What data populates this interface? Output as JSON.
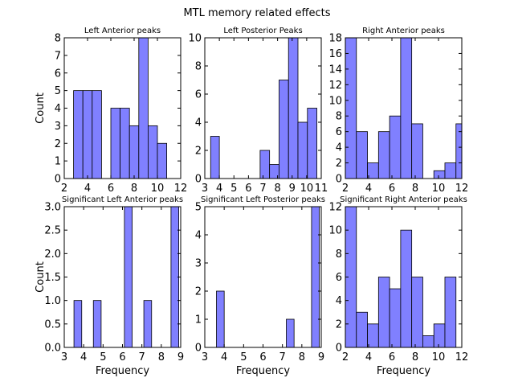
{
  "figure_title": "MTL memory related effects",
  "colors": {
    "bar_fill": "#8080ff",
    "bar_edge": "#000000",
    "axes": "#000000"
  },
  "chart_data": [
    {
      "type": "bar",
      "title": "Left Anterior peaks",
      "xlabel": "",
      "ylabel": "Count",
      "xlim": [
        2,
        12
      ],
      "ylim": [
        0,
        8
      ],
      "xticks": [
        2,
        4,
        6,
        8,
        10,
        12
      ],
      "yticks": [
        0,
        1,
        2,
        3,
        4,
        5,
        6,
        7,
        8
      ],
      "bins": [
        {
          "x0": 2.8,
          "x1": 3.6,
          "count": 5
        },
        {
          "x0": 3.6,
          "x1": 4.4,
          "count": 5
        },
        {
          "x0": 4.4,
          "x1": 5.2,
          "count": 5
        },
        {
          "x0": 6.0,
          "x1": 6.8,
          "count": 4
        },
        {
          "x0": 6.8,
          "x1": 7.6,
          "count": 4
        },
        {
          "x0": 7.6,
          "x1": 8.4,
          "count": 3
        },
        {
          "x0": 8.4,
          "x1": 9.2,
          "count": 8
        },
        {
          "x0": 9.2,
          "x1": 10.0,
          "count": 3
        },
        {
          "x0": 10.0,
          "x1": 10.8,
          "count": 2
        }
      ]
    },
    {
      "type": "bar",
      "title": "Left Posterior Peaks",
      "xlabel": "",
      "ylabel": "",
      "xlim": [
        3,
        11
      ],
      "ylim": [
        0,
        10
      ],
      "xticks": [
        3,
        4,
        5,
        6,
        7,
        8,
        9,
        10,
        11
      ],
      "yticks": [
        0,
        2,
        4,
        6,
        8,
        10
      ],
      "bins": [
        {
          "x0": 3.4,
          "x1": 4.0,
          "count": 3
        },
        {
          "x0": 6.8,
          "x1": 7.45,
          "count": 2
        },
        {
          "x0": 7.45,
          "x1": 8.1,
          "count": 1
        },
        {
          "x0": 8.1,
          "x1": 8.75,
          "count": 7
        },
        {
          "x0": 8.75,
          "x1": 9.4,
          "count": 10
        },
        {
          "x0": 9.4,
          "x1": 10.05,
          "count": 4
        },
        {
          "x0": 10.05,
          "x1": 10.7,
          "count": 5
        }
      ]
    },
    {
      "type": "bar",
      "title": "Right Anterior peaks",
      "xlabel": "",
      "ylabel": "",
      "xlim": [
        2,
        12
      ],
      "ylim": [
        0,
        18
      ],
      "xticks": [
        2,
        4,
        6,
        8,
        10,
        12
      ],
      "yticks": [
        0,
        2,
        4,
        6,
        8,
        10,
        12,
        14,
        16,
        18
      ],
      "bins": [
        {
          "x0": 2.0,
          "x1": 2.95,
          "count": 18
        },
        {
          "x0": 2.95,
          "x1": 3.9,
          "count": 6
        },
        {
          "x0": 3.9,
          "x1": 4.85,
          "count": 2
        },
        {
          "x0": 4.85,
          "x1": 5.8,
          "count": 6
        },
        {
          "x0": 5.8,
          "x1": 6.75,
          "count": 8
        },
        {
          "x0": 6.75,
          "x1": 7.7,
          "count": 18
        },
        {
          "x0": 7.7,
          "x1": 8.65,
          "count": 7
        },
        {
          "x0": 9.6,
          "x1": 10.55,
          "count": 1
        },
        {
          "x0": 10.55,
          "x1": 11.5,
          "count": 2
        },
        {
          "x0": 11.5,
          "x1": 12.45,
          "count": 7
        }
      ]
    },
    {
      "type": "bar",
      "title": "Significant Left Anterior peaks",
      "xlabel": "Frequency",
      "ylabel": "Count",
      "xlim": [
        3,
        9
      ],
      "ylim": [
        0,
        3.0
      ],
      "xticks": [
        3,
        4,
        5,
        6,
        7,
        8,
        9
      ],
      "yticks": [
        0.0,
        0.5,
        1.0,
        1.5,
        2.0,
        2.5,
        3.0
      ],
      "ytick_decimals": 1,
      "bins": [
        {
          "x0": 3.5,
          "x1": 3.9,
          "count": 1
        },
        {
          "x0": 4.5,
          "x1": 4.9,
          "count": 1
        },
        {
          "x0": 6.1,
          "x1": 6.5,
          "count": 3
        },
        {
          "x0": 7.1,
          "x1": 7.5,
          "count": 1
        },
        {
          "x0": 8.5,
          "x1": 8.9,
          "count": 3
        }
      ]
    },
    {
      "type": "bar",
      "title": "Significant Left Posterior peaks",
      "xlabel": "Frequency",
      "ylabel": "",
      "xlim": [
        3,
        9
      ],
      "ylim": [
        0,
        5
      ],
      "xticks": [
        3,
        4,
        5,
        6,
        7,
        8,
        9
      ],
      "yticks": [
        0,
        1,
        2,
        3,
        4,
        5
      ],
      "bins": [
        {
          "x0": 3.6,
          "x1": 4.0,
          "count": 2
        },
        {
          "x0": 7.2,
          "x1": 7.6,
          "count": 1
        },
        {
          "x0": 8.5,
          "x1": 8.9,
          "count": 5
        }
      ]
    },
    {
      "type": "bar",
      "title": "Significant Right Anterior peaks",
      "xlabel": "Frequency",
      "ylabel": "",
      "xlim": [
        2,
        12
      ],
      "ylim": [
        0,
        12
      ],
      "xticks": [
        2,
        4,
        6,
        8,
        10,
        12
      ],
      "yticks": [
        0,
        2,
        4,
        6,
        8,
        10,
        12
      ],
      "bins": [
        {
          "x0": 2.0,
          "x1": 2.95,
          "count": 12
        },
        {
          "x0": 2.95,
          "x1": 3.9,
          "count": 3
        },
        {
          "x0": 3.9,
          "x1": 4.85,
          "count": 2
        },
        {
          "x0": 4.85,
          "x1": 5.8,
          "count": 6
        },
        {
          "x0": 5.8,
          "x1": 6.75,
          "count": 5
        },
        {
          "x0": 6.75,
          "x1": 7.7,
          "count": 10
        },
        {
          "x0": 7.7,
          "x1": 8.65,
          "count": 6
        },
        {
          "x0": 8.65,
          "x1": 9.6,
          "count": 1
        },
        {
          "x0": 9.6,
          "x1": 10.55,
          "count": 2
        },
        {
          "x0": 10.55,
          "x1": 11.5,
          "count": 6
        }
      ]
    }
  ]
}
